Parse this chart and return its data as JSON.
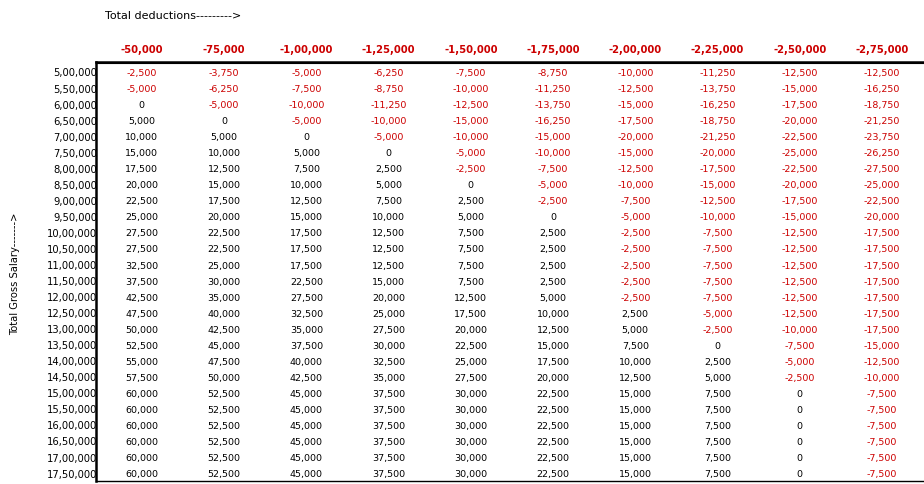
{
  "title_deductions": "Total deductions--------->",
  "col_headers": [
    "-50,000",
    "-75,000",
    "-1,00,000",
    "-1,25,000",
    "-1,50,000",
    "-1,75,000",
    "-2,00,000",
    "-2,25,000",
    "-2,50,000",
    "-2,75,000"
  ],
  "row_headers": [
    "5,00,000",
    "5,50,000",
    "6,00,000",
    "6,50,000",
    "7,00,000",
    "7,50,000",
    "8,00,000",
    "8,50,000",
    "9,00,000",
    "9,50,000",
    "10,00,000",
    "10,50,000",
    "11,00,000",
    "11,50,000",
    "12,00,000",
    "12,50,000",
    "13,00,000",
    "13,50,000",
    "14,00,000",
    "14,50,000",
    "15,00,000",
    "15,50,000",
    "16,00,000",
    "16,50,000",
    "17,00,000",
    "17,50,000"
  ],
  "row_label": "Total Gross Salary------->",
  "table_data": [
    [
      "-2,500",
      "-3,750",
      "-5,000",
      "-6,250",
      "-7,500",
      "-8,750",
      "-10,000",
      "-11,250",
      "-12,500",
      "-12,500"
    ],
    [
      "-5,000",
      "-6,250",
      "-7,500",
      "-8,750",
      "-10,000",
      "-11,250",
      "-12,500",
      "-13,750",
      "-15,000",
      "-16,250"
    ],
    [
      "0",
      "-5,000",
      "-10,000",
      "-11,250",
      "-12,500",
      "-13,750",
      "-15,000",
      "-16,250",
      "-17,500",
      "-18,750"
    ],
    [
      "5,000",
      "0",
      "-5,000",
      "-10,000",
      "-15,000",
      "-16,250",
      "-17,500",
      "-18,750",
      "-20,000",
      "-21,250"
    ],
    [
      "10,000",
      "5,000",
      "0",
      "-5,000",
      "-10,000",
      "-15,000",
      "-20,000",
      "-21,250",
      "-22,500",
      "-23,750"
    ],
    [
      "15,000",
      "10,000",
      "5,000",
      "0",
      "-5,000",
      "-10,000",
      "-15,000",
      "-20,000",
      "-25,000",
      "-26,250"
    ],
    [
      "17,500",
      "12,500",
      "7,500",
      "2,500",
      "-2,500",
      "-7,500",
      "-12,500",
      "-17,500",
      "-22,500",
      "-27,500"
    ],
    [
      "20,000",
      "15,000",
      "10,000",
      "5,000",
      "0",
      "-5,000",
      "-10,000",
      "-15,000",
      "-20,000",
      "-25,000"
    ],
    [
      "22,500",
      "17,500",
      "12,500",
      "7,500",
      "2,500",
      "-2,500",
      "-7,500",
      "-12,500",
      "-17,500",
      "-22,500"
    ],
    [
      "25,000",
      "20,000",
      "15,000",
      "10,000",
      "5,000",
      "0",
      "-5,000",
      "-10,000",
      "-15,000",
      "-20,000"
    ],
    [
      "27,500",
      "22,500",
      "17,500",
      "12,500",
      "7,500",
      "2,500",
      "-2,500",
      "-7,500",
      "-12,500",
      "-17,500"
    ],
    [
      "27,500",
      "22,500",
      "17,500",
      "12,500",
      "7,500",
      "2,500",
      "-2,500",
      "-7,500",
      "-12,500",
      "-17,500"
    ],
    [
      "32,500",
      "25,000",
      "17,500",
      "12,500",
      "7,500",
      "2,500",
      "-2,500",
      "-7,500",
      "-12,500",
      "-17,500"
    ],
    [
      "37,500",
      "30,000",
      "22,500",
      "15,000",
      "7,500",
      "2,500",
      "-2,500",
      "-7,500",
      "-12,500",
      "-17,500"
    ],
    [
      "42,500",
      "35,000",
      "27,500",
      "20,000",
      "12,500",
      "5,000",
      "-2,500",
      "-7,500",
      "-12,500",
      "-17,500"
    ],
    [
      "47,500",
      "40,000",
      "32,500",
      "25,000",
      "17,500",
      "10,000",
      "2,500",
      "-5,000",
      "-12,500",
      "-17,500"
    ],
    [
      "50,000",
      "42,500",
      "35,000",
      "27,500",
      "20,000",
      "12,500",
      "5,000",
      "-2,500",
      "-10,000",
      "-17,500"
    ],
    [
      "52,500",
      "45,000",
      "37,500",
      "30,000",
      "22,500",
      "15,000",
      "7,500",
      "0",
      "-7,500",
      "-15,000"
    ],
    [
      "55,000",
      "47,500",
      "40,000",
      "32,500",
      "25,000",
      "17,500",
      "10,000",
      "2,500",
      "-5,000",
      "-12,500"
    ],
    [
      "57,500",
      "50,000",
      "42,500",
      "35,000",
      "27,500",
      "20,000",
      "12,500",
      "5,000",
      "-2,500",
      "-10,000"
    ],
    [
      "60,000",
      "52,500",
      "45,000",
      "37,500",
      "30,000",
      "22,500",
      "15,000",
      "7,500",
      "0",
      "-7,500"
    ],
    [
      "60,000",
      "52,500",
      "45,000",
      "37,500",
      "30,000",
      "22,500",
      "15,000",
      "7,500",
      "0",
      "-7,500"
    ],
    [
      "60,000",
      "52,500",
      "45,000",
      "37,500",
      "30,000",
      "22,500",
      "15,000",
      "7,500",
      "0",
      "-7,500"
    ],
    [
      "60,000",
      "52,500",
      "45,000",
      "37,500",
      "30,000",
      "22,500",
      "15,000",
      "7,500",
      "0",
      "-7,500"
    ],
    [
      "60,000",
      "52,500",
      "45,000",
      "37,500",
      "30,000",
      "22,500",
      "15,000",
      "7,500",
      "0",
      "-7,500"
    ],
    [
      "60,000",
      "52,500",
      "45,000",
      "37,500",
      "30,000",
      "22,500",
      "15,000",
      "7,500",
      "0",
      "-7,500"
    ]
  ],
  "positive_color": "#000000",
  "negative_color": "#cc0000",
  "zero_color": "#000000",
  "header_color": "#cc0000",
  "background_color": "#ffffff",
  "row_header_color": "#000000",
  "border_color": "#000000",
  "col_header_fontsize": 7.2,
  "row_header_fontsize": 7.2,
  "cell_fontsize": 6.8,
  "label_fontsize": 7.2,
  "title_fontsize": 8.0
}
